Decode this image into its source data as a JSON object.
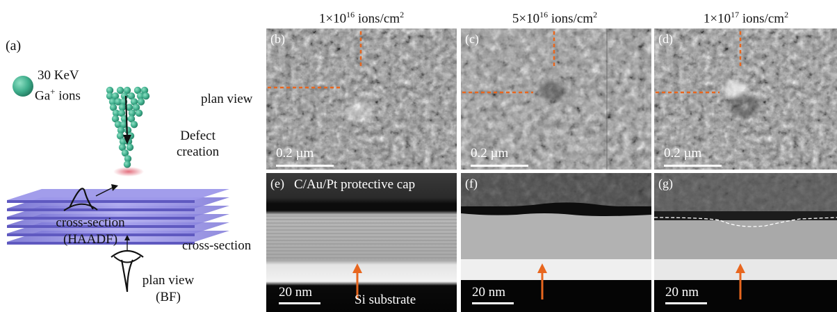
{
  "schematic": {
    "panel_label": "(a)",
    "ion_energy": "30 KeV",
    "ion_species": "Ga",
    "ion_charge": "+",
    "ion_word": "ions",
    "defect_line1": "Defect",
    "defect_line2": "creation",
    "cross_section_line1": "cross-section",
    "cross_section_line2": "(HAADF)",
    "plan_view_line1": "plan view",
    "plan_view_line2": "(BF)"
  },
  "row_labels": {
    "plan_view": "plan view",
    "cross_section": "cross-section"
  },
  "doses": [
    {
      "mant": "1×10",
      "exp": "16",
      "unit": " ions/cm",
      "unit_exp": "2"
    },
    {
      "mant": "5×10",
      "exp": "16",
      "unit": " ions/cm",
      "unit_exp": "2"
    },
    {
      "mant": "1×10",
      "exp": "17",
      "unit": " ions/cm",
      "unit_exp": "2"
    }
  ],
  "plan_panels": [
    {
      "label": "(b)",
      "scale": "0.2 µm"
    },
    {
      "label": "(c)",
      "scale": "0.2 µm"
    },
    {
      "label": "(d)",
      "scale": "0.2 µm"
    }
  ],
  "cross_panels": [
    {
      "label": "(e)",
      "scale": "20 nm",
      "annotation_top": "C/Au/Pt protective cap",
      "annotation_bottom": "Si substrate"
    },
    {
      "label": "(f)",
      "scale": "20 nm"
    },
    {
      "label": "(g)",
      "scale": "20 nm"
    }
  ],
  "colors": {
    "ion": "#3fae8c",
    "layers": "#8c86e0",
    "marker": "#e8661e",
    "defect_glow": "#e06070"
  }
}
